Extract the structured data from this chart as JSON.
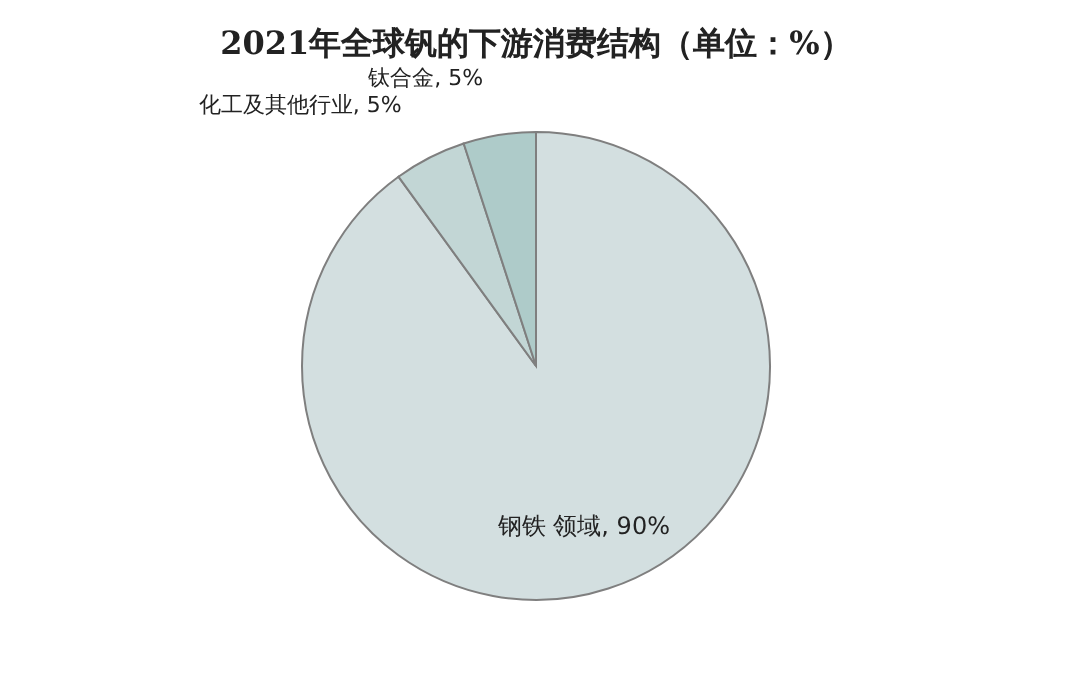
{
  "chart_data": {
    "type": "pie",
    "title": "2021年全球钒的下游消费结构（单位：%）",
    "categories": [
      "钢铁 领域",
      "化工及其他行业",
      "钛合金"
    ],
    "values": [
      90,
      5,
      5
    ],
    "colors": [
      "#d3dfe0",
      "#c2d6d5",
      "#aecbc9"
    ],
    "value_labels": [
      "90%",
      "5%",
      "5%"
    ]
  }
}
